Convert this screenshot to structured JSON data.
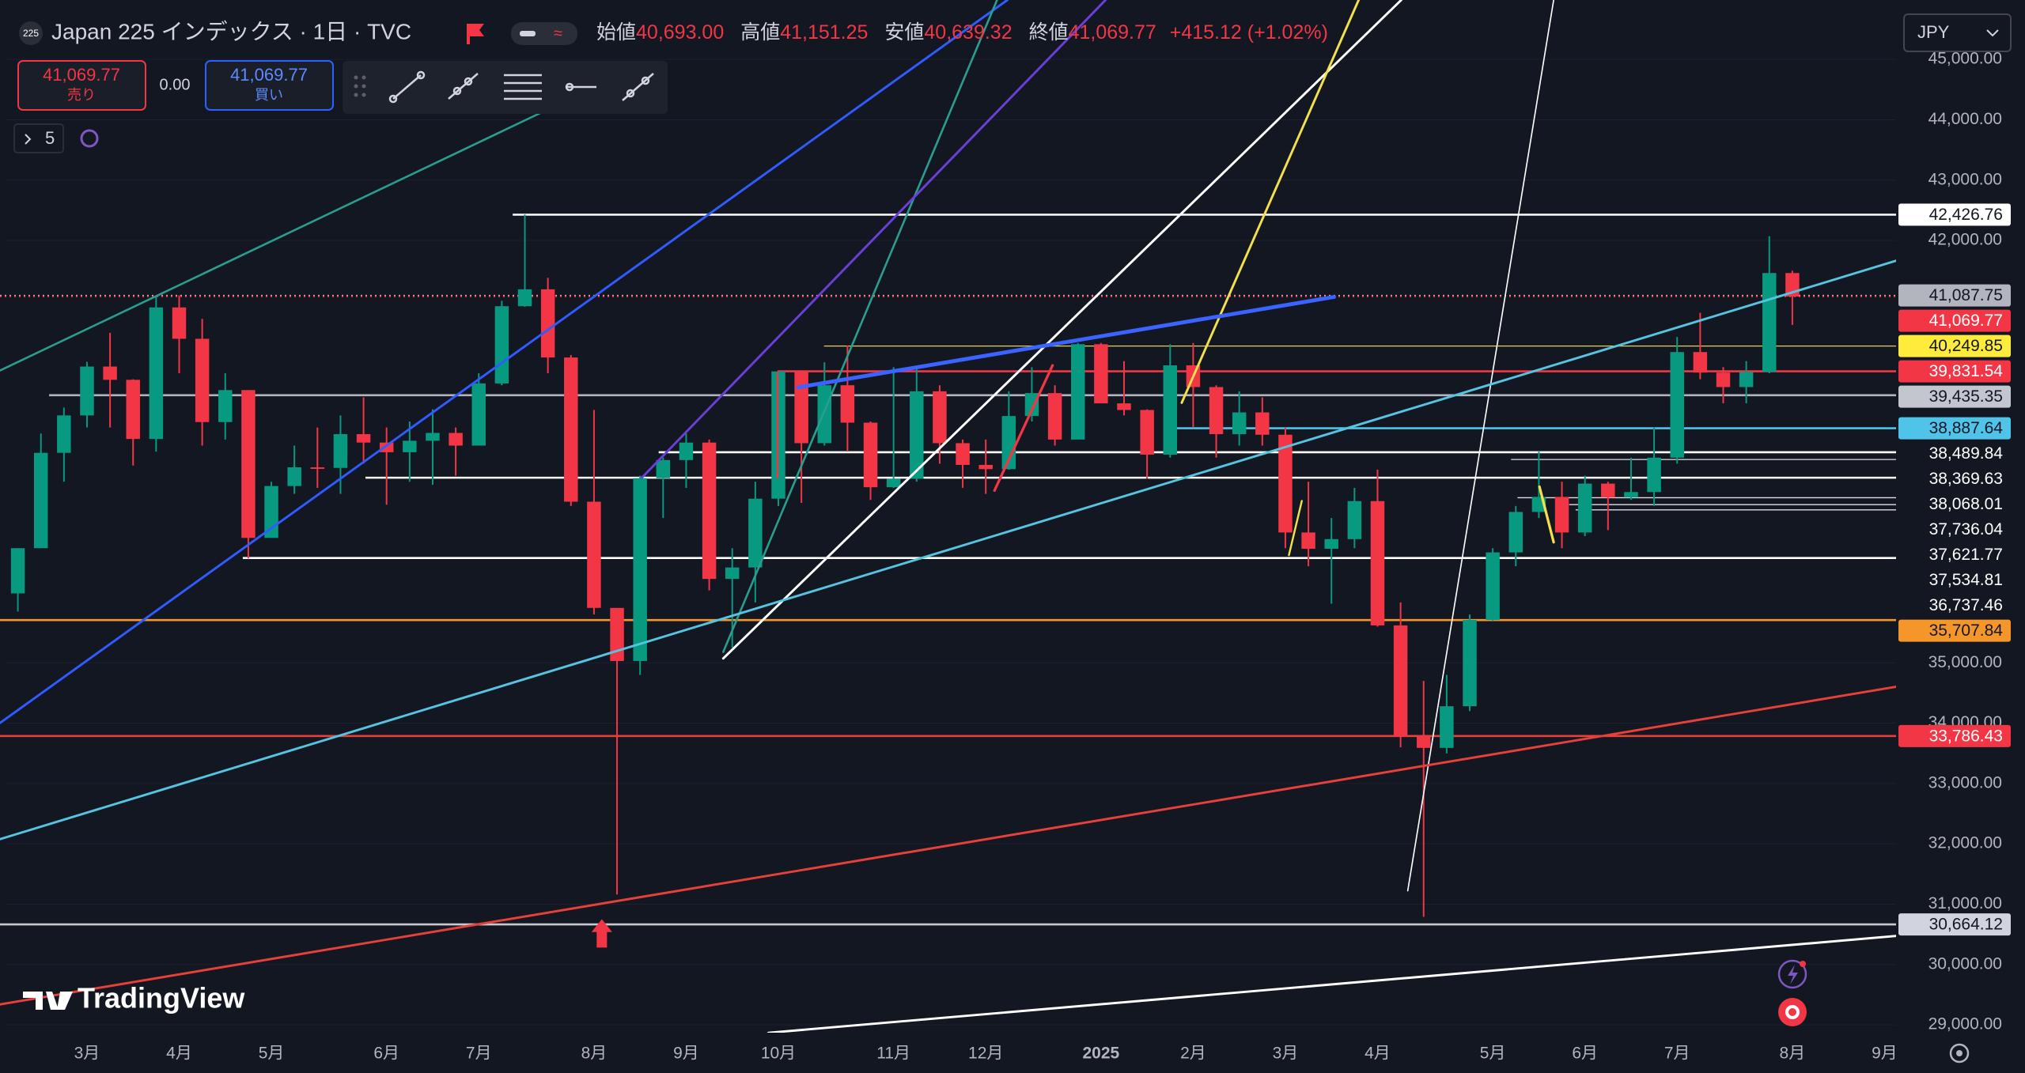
{
  "header": {
    "symbol_icon": "225",
    "title": "Japan 225 インデックス · 1日 · TVC",
    "ohlc": [
      {
        "label": "始値",
        "value": "40,693.00"
      },
      {
        "label": "高値",
        "value": "41,151.25"
      },
      {
        "label": "安値",
        "value": "40,639.32"
      },
      {
        "label": "終値",
        "value": "41,069.77"
      }
    ],
    "change": "+415.12 (+1.02%)",
    "sell": {
      "price": "41,069.77",
      "label": "売り"
    },
    "spread": "0.00",
    "buy": {
      "price": "41,069.77",
      "label": "買い"
    },
    "indicators": "5",
    "currency": "JPY",
    "logo": "TradingView"
  },
  "chart_data": {
    "type": "candlestick",
    "up_color": "#089981",
    "down_color": "#f23645",
    "grid": true,
    "categories": [
      null,
      null,
      null,
      "3月",
      null,
      null,
      null,
      "4月",
      null,
      null,
      null,
      "5月",
      null,
      null,
      null,
      null,
      "6月",
      null,
      null,
      null,
      "7月",
      null,
      null,
      null,
      null,
      "8月",
      null,
      null,
      null,
      "9月",
      null,
      null,
      null,
      "10月",
      null,
      null,
      null,
      null,
      "11月",
      null,
      null,
      null,
      "12月",
      null,
      null,
      null,
      null,
      "2025",
      null,
      null,
      null,
      "2月",
      null,
      null,
      null,
      "3月",
      null,
      null,
      null,
      "4月",
      null,
      null,
      null,
      null,
      "5月",
      null,
      null,
      null,
      "6月",
      null,
      null,
      null,
      "7月",
      null,
      null,
      null,
      null,
      "8月",
      null,
      null,
      null,
      "9月"
    ],
    "open": [
      36150,
      36900,
      38480,
      39100,
      39910,
      39690,
      38710,
      40890,
      40370,
      38990,
      39520,
      37070,
      37930,
      38240,
      38230,
      38790,
      38650,
      38490,
      38680,
      38810,
      38600,
      39630,
      40910,
      41190,
      40060,
      37670,
      35910,
      35030,
      38060,
      38360,
      38650,
      36390,
      36580,
      37720,
      39830,
      38640,
      39600,
      38980,
      37910,
      38050,
      39500,
      38640,
      38280,
      38210,
      39090,
      39470,
      38700,
      40280,
      39300,
      39190,
      38450,
      39930,
      39570,
      38790,
      39150,
      38780,
      37160,
      36890,
      37050,
      37680,
      35620,
      33780,
      33590,
      34280,
      35710,
      36830,
      37500,
      37750,
      37160,
      37970,
      37740,
      37830,
      38400,
      40150,
      39810,
      39570,
      39820,
      41460,
      null,
      null,
      null,
      null
    ],
    "high": [
      36900,
      38800,
      39230,
      39990,
      40470,
      39700,
      41090,
      41090,
      40700,
      39800,
      39520,
      38000,
      38600,
      38900,
      39100,
      39400,
      38900,
      39000,
      39200,
      38900,
      39800,
      41000,
      42430,
      41380,
      40100,
      39190,
      35900,
      38100,
      38400,
      38800,
      38700,
      36900,
      38000,
      39830,
      39830,
      39980,
      40260,
      39000,
      39900,
      39880,
      39600,
      38700,
      38700,
      39500,
      39900,
      39600,
      40300,
      40300,
      40000,
      39200,
      40280,
      40300,
      39600,
      39500,
      39400,
      38900,
      38000,
      37400,
      37900,
      38200,
      36000,
      34700,
      34800,
      35800,
      36900,
      37600,
      38500,
      38000,
      38100,
      38000,
      38400,
      38900,
      40400,
      40800,
      39900,
      40000,
      42070,
      41500,
      null,
      null,
      null,
      null
    ],
    "low": [
      35850,
      36900,
      38000,
      38900,
      38900,
      38270,
      38500,
      39800,
      38600,
      38700,
      36730,
      37200,
      37800,
      37900,
      37800,
      38300,
      37620,
      38000,
      37950,
      38100,
      38600,
      39600,
      40900,
      39800,
      37600,
      35800,
      31160,
      34800,
      37400,
      37900,
      36200,
      35250,
      36000,
      37600,
      37650,
      38600,
      38500,
      37700,
      37900,
      38000,
      38300,
      37900,
      37800,
      38200,
      39000,
      38600,
      38700,
      39300,
      39100,
      38050,
      38400,
      38900,
      38400,
      38600,
      38600,
      36900,
      36600,
      35980,
      36900,
      35600,
      33600,
      30790,
      33500,
      34200,
      35700,
      36600,
      37400,
      36900,
      37100,
      37200,
      37700,
      37600,
      38300,
      39700,
      39300,
      39300,
      39800,
      40600,
      null,
      null,
      null,
      null
    ],
    "close": [
      36900,
      38480,
      39100,
      39910,
      39690,
      38710,
      40890,
      40370,
      38990,
      39520,
      37070,
      37930,
      38240,
      38230,
      38790,
      38650,
      38490,
      38680,
      38810,
      38600,
      39630,
      40910,
      41190,
      40060,
      37670,
      35910,
      35030,
      38060,
      38360,
      38650,
      36390,
      36580,
      37720,
      39830,
      38640,
      39600,
      38980,
      37910,
      38050,
      39500,
      38640,
      38280,
      38210,
      39090,
      39470,
      38700,
      40280,
      39300,
      39190,
      38450,
      39930,
      39570,
      38790,
      39150,
      38780,
      37160,
      36890,
      37050,
      37680,
      35620,
      33780,
      33590,
      34280,
      35710,
      36830,
      37500,
      37750,
      37160,
      37970,
      37740,
      37830,
      38400,
      40150,
      39810,
      39570,
      39820,
      41460,
      41069.77,
      null,
      null,
      null,
      null
    ],
    "ylim": [
      28870,
      45880
    ],
    "yticks": [
      {
        "value": 45000,
        "label": "45,000.00"
      },
      {
        "value": 44000,
        "label": "44,000.00"
      },
      {
        "value": 43000,
        "label": "43,000.00"
      },
      {
        "value": 42000,
        "label": "42,000.00"
      },
      {
        "value": 35000,
        "label": "35,000.00"
      },
      {
        "value": 34000,
        "label": "34,000.00"
      },
      {
        "value": 33000,
        "label": "33,000.00"
      },
      {
        "value": 32000,
        "label": "32,000.00"
      },
      {
        "value": 31000,
        "label": "31,000.00"
      },
      {
        "value": 30000,
        "label": "30,000.00"
      },
      {
        "value": 29000,
        "label": "29,000.00"
      }
    ],
    "levels": [
      {
        "value": 42426.76,
        "label": "42,426.76",
        "color": "#ffffff",
        "label_color": "#ffffff",
        "text_color": "#131722"
      },
      {
        "value": 41087.75,
        "label": "41,087.75",
        "color": "#d9a8b0",
        "label_color": "#b2b5be",
        "text_color": "#131722"
      },
      {
        "value": 41069.77,
        "label": "41,069.77",
        "color": "#f23645",
        "label_color": "#f23645",
        "text_color": "#ffffff"
      },
      {
        "value": 40249.85,
        "label": "40,249.85",
        "color": "#e8d53b",
        "label_color": "#ffeb3b",
        "text_color": "#131722"
      },
      {
        "value": 39831.54,
        "label": "39,831.54",
        "color": "#f23645",
        "label_color": "#f23645",
        "text_color": "#ffffff"
      },
      {
        "value": 39435.35,
        "label": "39,435.35",
        "color": "#b2b5be",
        "label_color": "#c3c6ce",
        "text_color": "#131722"
      },
      {
        "value": 38887.64,
        "label": "38,887.64",
        "color": "#4fc3e8",
        "label_color": "#4fc3e8",
        "text_color": "#131722"
      },
      {
        "value": 38489.84,
        "label": "38,489.84",
        "color": "#ffffff",
        "label_color": "#131722",
        "text_color": "#ffffff"
      },
      {
        "value": 38369.63,
        "label": "38,369.63",
        "color": "#e0e0e0",
        "label_color": "#131722",
        "text_color": "#ffffff"
      },
      {
        "value": 38068.01,
        "label": "38,068.01",
        "color": "#ffffff",
        "label_color": "#131722",
        "text_color": "#ffffff"
      },
      {
        "value": 37736.04,
        "label": "37,736.04",
        "color": "#e0e0e0",
        "label_color": "#131722",
        "text_color": "#ffffff"
      },
      {
        "value": 37621.77,
        "label": "37,621.77",
        "color": "#e0e0e0",
        "label_color": "#131722",
        "text_color": "#ffffff"
      },
      {
        "value": 37534.81,
        "label": "37,534.81",
        "color": "#e0e0e0",
        "label_color": "#131722",
        "text_color": "#ffffff"
      },
      {
        "value": 36737.46,
        "label": "36,737.46",
        "color": "#ffffff",
        "label_color": "#131722",
        "text_color": "#ffffff"
      },
      {
        "value": 35707.84,
        "label": "35,707.84",
        "color": "#f5962a",
        "label_color": "#f5962a",
        "text_color": "#131722"
      },
      {
        "value": 33786.43,
        "label": "33,786.43",
        "color": "#e5403a",
        "label_color": "#f23645",
        "text_color": "#ffffff"
      },
      {
        "value": 30664.12,
        "label": "30,664.12",
        "color": "#c8cad0",
        "label_color": "#d1d4dc",
        "text_color": "#131722"
      }
    ]
  }
}
